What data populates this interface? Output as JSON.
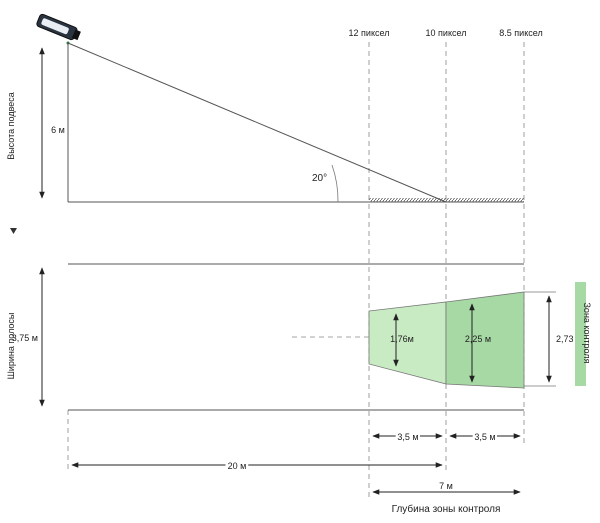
{
  "pixel_labels": [
    "12 пиксел",
    "10 пиксел",
    "8.5 пиксел"
  ],
  "side_view": {
    "height_axis_label": "Высота подвеса",
    "height_value": "6 м",
    "angle_label": "20°"
  },
  "top_view": {
    "width_axis_label": "Ширина полосы",
    "width_value": "3,75 м",
    "zone_widths": [
      "1,76м",
      "2,25 м",
      "2,73 м"
    ],
    "zone_label": "Зона контроля"
  },
  "dimensions": {
    "segment_1": "3,5 м",
    "segment_2": "3,5 м",
    "distance": "20 м",
    "total_depth": "7 м",
    "depth_caption": "Глубина зоны контроля"
  },
  "colors": {
    "zone_fill": "#a6d9a3",
    "zone_fill_light": "#c9ebc4",
    "camera_body": "#2a3440"
  }
}
